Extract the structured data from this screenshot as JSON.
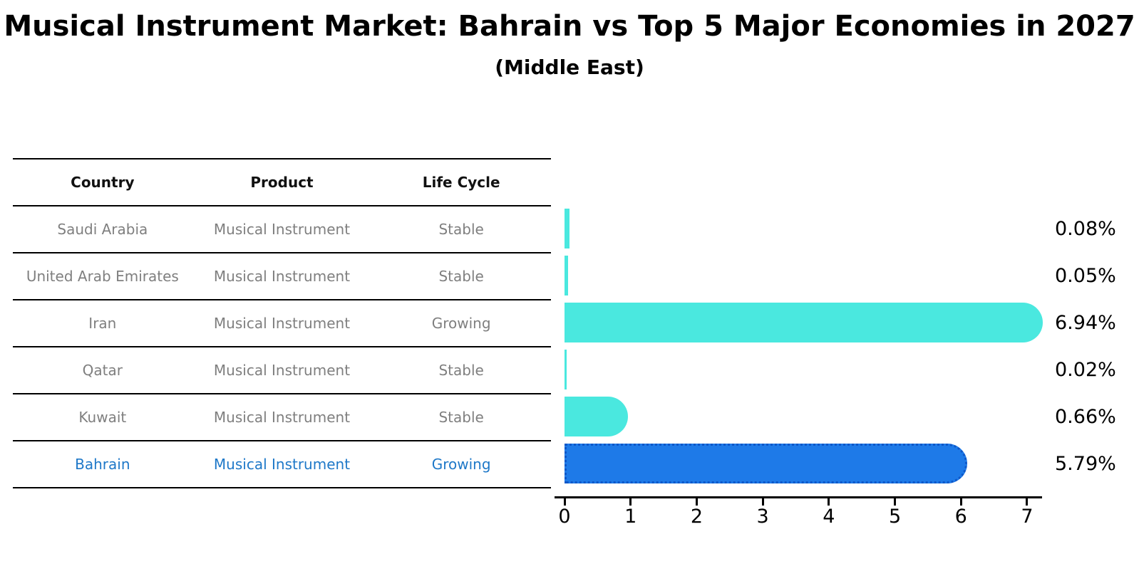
{
  "title": "Musical Instrument Market: Bahrain vs Top 5 Major Economies in 2027",
  "subtitle": "(Middle East)",
  "colors": {
    "bar_default": "#4ae8df",
    "bar_highlight": "#1e7ae8",
    "bar_highlight_border": "#0e57c8",
    "highlight_text": "#1e78c8",
    "row_text": "#7f7f7f",
    "header_text": "#111111"
  },
  "table": {
    "headers": [
      "Country",
      "Product",
      "Life Cycle"
    ],
    "rows": [
      {
        "country": "Saudi Arabia",
        "product": "Musical Instrument",
        "life_cycle": "Stable",
        "highlight": false
      },
      {
        "country": "United Arab Emirates",
        "product": "Musical Instrument",
        "life_cycle": "Stable",
        "highlight": false
      },
      {
        "country": "Iran",
        "product": "Musical Instrument",
        "life_cycle": "Growing",
        "highlight": false
      },
      {
        "country": "Qatar",
        "product": "Musical Instrument",
        "life_cycle": "Stable",
        "highlight": false
      },
      {
        "country": "Kuwait",
        "product": "Musical Instrument",
        "life_cycle": "Stable",
        "highlight": false
      },
      {
        "country": "Bahrain",
        "product": "Musical Instrument",
        "life_cycle": "Growing",
        "highlight": true
      }
    ]
  },
  "chart_data": {
    "type": "bar",
    "orientation": "horizontal",
    "title": "Musical Instrument Market: Bahrain vs Top 5 Major Economies in 2027 (Middle East)",
    "categories": [
      "Saudi Arabia",
      "United Arab Emirates",
      "Iran",
      "Qatar",
      "Kuwait",
      "Bahrain"
    ],
    "values": [
      0.08,
      0.05,
      6.94,
      0.02,
      0.66,
      5.79
    ],
    "labels": [
      "0.08%",
      "0.05%",
      "6.94%",
      "0.02%",
      "0.66%",
      "5.79%"
    ],
    "highlight_index": 5,
    "x_ticks": [
      0,
      1,
      2,
      3,
      4,
      5,
      6,
      7
    ],
    "xlim": [
      0,
      7.25
    ],
    "grid": false,
    "legend": "none"
  }
}
